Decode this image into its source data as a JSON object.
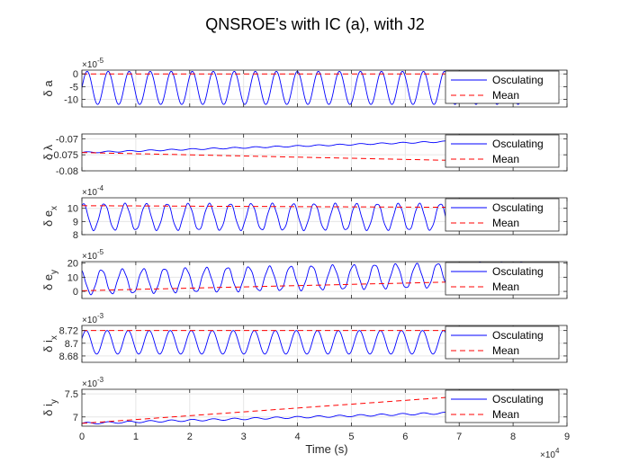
{
  "colors": {
    "osc": "#0000ff",
    "mean": "#ff0000",
    "axis": "#262626",
    "grid": "#e6e6e6"
  },
  "chart_data": {
    "type": "line",
    "title": "QNSROE's with IC (a), with J2",
    "xlabel": "Time (s)",
    "x_exponent_label": "×10",
    "x_exponent": "4",
    "xlim": [
      0,
      90000
    ],
    "x_ticks": [
      0,
      10000,
      20000,
      30000,
      40000,
      50000,
      60000,
      70000,
      80000,
      90000
    ],
    "x_tick_labels": [
      "0",
      "1",
      "2",
      "3",
      "4",
      "5",
      "6",
      "7",
      "8",
      "9"
    ],
    "legend": {
      "entries": [
        "Osculating",
        "Mean"
      ],
      "position": "bottom-right"
    },
    "grid": true,
    "series_style": {
      "Osculating": "solid-blue",
      "Mean": "dashed-red"
    },
    "panels": [
      {
        "ylabel_base": "δ a",
        "ylabel_sub": "",
        "exponent_label": "×10",
        "exponent": "-5",
        "ylim": [
          -13,
          1.5
        ],
        "y_ticks": [
          0,
          -5,
          -10
        ],
        "y_tick_labels": [
          "0",
          "-5",
          "-10"
        ],
        "osc": {
          "type": "oscillation",
          "center": -5.5,
          "amp": 6.5,
          "period": 3900,
          "phase": 0,
          "trend": 0,
          "noise": 0
        },
        "mean": {
          "type": "line",
          "x": [
            0,
            84000
          ],
          "y": [
            0,
            0
          ]
        }
      },
      {
        "ylabel_base": "δ λ",
        "ylabel_sub": "",
        "exponent_label": "",
        "exponent": "",
        "ylim": [
          -0.08,
          -0.0685
        ],
        "y_ticks": [
          -0.07,
          -0.075,
          -0.08
        ],
        "y_tick_labels": [
          "-0.07",
          "-0.075",
          "-0.08"
        ],
        "osc": {
          "type": "oscillation",
          "center": -0.0743,
          "amp": 0.0002,
          "period": 3900,
          "phase": 0,
          "trend": 5.05e-08,
          "noise": 0
        },
        "mean": {
          "type": "line",
          "x": [
            0,
            84000
          ],
          "y": [
            -0.0743,
            -0.0773
          ]
        }
      },
      {
        "ylabel_base": "δ e",
        "ylabel_sub": "x",
        "exponent_label": "×10",
        "exponent": "-4",
        "ylim": [
          8,
          10.8
        ],
        "y_ticks": [
          10,
          9,
          8
        ],
        "y_tick_labels": [
          "10",
          "9",
          "8"
        ],
        "osc": {
          "type": "oscillation",
          "center": 9.35,
          "amp": 1.0,
          "period": 3900,
          "phase": 1.2,
          "trend": 0,
          "noise": 0.05
        },
        "mean": {
          "type": "line",
          "x": [
            0,
            84000
          ],
          "y": [
            10.2,
            10.05
          ]
        }
      },
      {
        "ylabel_base": "δ e",
        "ylabel_sub": "y",
        "exponent_label": "×10",
        "exponent": "-5",
        "ylim": [
          -5,
          21
        ],
        "y_ticks": [
          20,
          10,
          0
        ],
        "y_tick_labels": [
          "20",
          "10",
          "0"
        ],
        "osc": {
          "type": "oscillation",
          "center": 6.5,
          "amp": 8.5,
          "period": 3900,
          "phase": 2.0,
          "trend": 7.14e-05,
          "noise": 0.5
        },
        "mean": {
          "type": "line",
          "x": [
            0,
            84000
          ],
          "y": [
            0.5,
            8.0
          ]
        }
      },
      {
        "ylabel_base": "δ i",
        "ylabel_sub": "x",
        "exponent_label": "×10",
        "exponent": "-3",
        "ylim": [
          8.67,
          8.728
        ],
        "y_ticks": [
          8.72,
          8.7,
          8.68
        ],
        "y_tick_labels": [
          "8.72",
          "8.7",
          "8.68"
        ],
        "osc": {
          "type": "oscillation",
          "center": 8.7015,
          "amp": 0.0185,
          "period": 3900,
          "phase": 0.3,
          "trend": 0,
          "noise": 0
        },
        "mean": {
          "type": "line",
          "x": [
            0,
            84000
          ],
          "y": [
            8.72,
            8.72
          ]
        }
      },
      {
        "ylabel_base": "δ i",
        "ylabel_sub": "y",
        "exponent_label": "×10",
        "exponent": "-3",
        "ylim": [
          6.8,
          7.6
        ],
        "y_ticks": [
          7.5,
          7
        ],
        "y_tick_labels": [
          "7.5",
          "7"
        ],
        "osc": {
          "type": "oscillation",
          "center": 6.86,
          "amp": 0.02,
          "period": 3900,
          "phase": 0,
          "trend": 3.3e-06,
          "noise": 0
        },
        "mean": {
          "type": "line",
          "x": [
            0,
            84000
          ],
          "y": [
            6.86,
            7.56
          ]
        }
      }
    ]
  }
}
